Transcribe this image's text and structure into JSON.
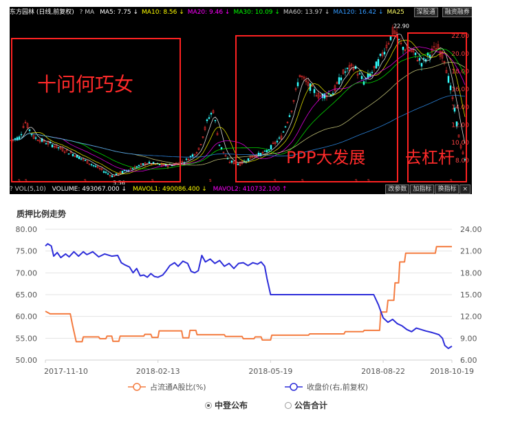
{
  "kline": {
    "title": "东方园林 (日线,前复权)",
    "ma_indicators": [
      {
        "label": "MA5: 7.75 ↓",
        "color": "#ffffff"
      },
      {
        "label": "MA10: 8.56 ↓",
        "color": "#ffff00"
      },
      {
        "label": "MA20: 9.46 ↓",
        "color": "#ff00ff"
      },
      {
        "label": "MA30: 10.09 ↓",
        "color": "#00ff00"
      },
      {
        "label": "MA60: 13.97 ↓",
        "color": "#cccccc"
      },
      {
        "label": "MA120: 16.42 ↓",
        "color": "#3399ff"
      },
      {
        "label": "MA25",
        "color": "#ffff66"
      }
    ],
    "ma_prefix": "? MA",
    "toolbar_buttons": [
      "深股通",
      "融资融券",
      "设置均线"
    ],
    "price_ticks": [
      "22.00",
      "20.00",
      "18.00",
      "16.00",
      "14.00",
      "12.00",
      "10.00",
      "8.00"
    ],
    "peak_label": "22.90",
    "low_label": "5.56",
    "volume_row": {
      "prefix": "? VOL(5,10)",
      "volume": "VOLUME: 493067.000 ↓",
      "mavol1": "MAVOL1: 490086.400 ↓",
      "mavol2": "MAVOL2: 410732.100 ↑"
    },
    "bottom_buttons": [
      "改参数",
      "加指标",
      "换指标",
      "×"
    ],
    "annotations": [
      "十问何巧女",
      "PPP大发展",
      "去杠杆"
    ],
    "colors": {
      "up": "#ff3333",
      "down": "#33ffff",
      "box": "#ff2222"
    }
  },
  "chart_data": {
    "type": "line",
    "title": "质押比例走势",
    "x_tick_labels": [
      "2017-11-10",
      "2018-02-13",
      "2018-05-19",
      "2018-08-22",
      "2018-10-19"
    ],
    "y_left_ticks": [
      "80.00",
      "75.00",
      "70.00",
      "65.00",
      "60.00",
      "55.00",
      "50.00"
    ],
    "y_right_ticks": [
      "24.00",
      "21.00",
      "18.00",
      "15.00",
      "12.00",
      "9.00",
      "6.00"
    ],
    "ylim_left": [
      50,
      80
    ],
    "ylim_right": [
      6,
      24
    ],
    "x_domain": [
      "2017-11-10",
      "2018-10-19"
    ],
    "grid": true,
    "legend_position": "bottom",
    "series": [
      {
        "name": "占流通A股比(%)",
        "axis": "left",
        "color": "#f47b3f",
        "points": [
          [
            "2017-11-10",
            61.2
          ],
          [
            "2017-11-14",
            60.6
          ],
          [
            "2017-12-01",
            60.6
          ],
          [
            "2017-12-03",
            57.9
          ],
          [
            "2017-12-06",
            54.2
          ],
          [
            "2017-12-11",
            54.2
          ],
          [
            "2017-12-12",
            55.3
          ],
          [
            "2017-12-25",
            55.3
          ],
          [
            "2017-12-26",
            54.9
          ],
          [
            "2017-12-31",
            54.9
          ],
          [
            "2018-01-01",
            55.5
          ],
          [
            "2018-01-05",
            55.5
          ],
          [
            "2018-01-06",
            54.3
          ],
          [
            "2018-01-11",
            54.3
          ],
          [
            "2018-01-12",
            55.5
          ],
          [
            "2018-02-01",
            55.5
          ],
          [
            "2018-02-02",
            55.9
          ],
          [
            "2018-02-07",
            55.9
          ],
          [
            "2018-02-08",
            55.2
          ],
          [
            "2018-02-13",
            55.2
          ],
          [
            "2018-02-14",
            56.7
          ],
          [
            "2018-03-05",
            56.7
          ],
          [
            "2018-03-06",
            55.1
          ],
          [
            "2018-03-11",
            55.1
          ],
          [
            "2018-03-12",
            56.8
          ],
          [
            "2018-03-17",
            56.8
          ],
          [
            "2018-03-18",
            55.8
          ],
          [
            "2018-04-10",
            55.8
          ],
          [
            "2018-04-11",
            55.4
          ],
          [
            "2018-04-25",
            55.4
          ],
          [
            "2018-04-26",
            54.9
          ],
          [
            "2018-05-05",
            54.9
          ],
          [
            "2018-05-06",
            55.3
          ],
          [
            "2018-05-11",
            55.3
          ],
          [
            "2018-05-12",
            54.6
          ],
          [
            "2018-05-19",
            54.6
          ],
          [
            "2018-05-20",
            55.7
          ],
          [
            "2018-06-20",
            55.7
          ],
          [
            "2018-06-21",
            56.0
          ],
          [
            "2018-07-20",
            56.0
          ],
          [
            "2018-07-21",
            56.5
          ],
          [
            "2018-08-05",
            56.5
          ],
          [
            "2018-08-06",
            56.8
          ],
          [
            "2018-08-19",
            56.8
          ],
          [
            "2018-08-20",
            61.0
          ],
          [
            "2018-08-25",
            61.0
          ],
          [
            "2018-08-26",
            63.7
          ],
          [
            "2018-08-31",
            63.7
          ],
          [
            "2018-09-01",
            67.7
          ],
          [
            "2018-09-04",
            67.7
          ],
          [
            "2018-09-05",
            72.5
          ],
          [
            "2018-09-09",
            72.5
          ],
          [
            "2018-09-10",
            74.5
          ],
          [
            "2018-10-05",
            74.5
          ],
          [
            "2018-10-06",
            76.0
          ],
          [
            "2018-10-19",
            76.0
          ]
        ]
      },
      {
        "name": "收盘价(右,前复权)",
        "axis": "right",
        "color": "#2b2bd9",
        "points": [
          [
            "2017-11-10",
            21.7
          ],
          [
            "2017-11-12",
            22.0
          ],
          [
            "2017-11-15",
            21.7
          ],
          [
            "2017-11-17",
            20.3
          ],
          [
            "2017-11-20",
            20.8
          ],
          [
            "2017-11-23",
            20.1
          ],
          [
            "2017-11-27",
            20.6
          ],
          [
            "2017-11-30",
            20.2
          ],
          [
            "2017-12-04",
            20.9
          ],
          [
            "2017-12-08",
            20.3
          ],
          [
            "2017-12-12",
            20.9
          ],
          [
            "2017-12-15",
            20.5
          ],
          [
            "2017-12-20",
            20.9
          ],
          [
            "2017-12-25",
            20.2
          ],
          [
            "2017-12-30",
            20.6
          ],
          [
            "2018-01-05",
            20.3
          ],
          [
            "2018-01-10",
            20.4
          ],
          [
            "2018-01-13",
            19.4
          ],
          [
            "2018-01-16",
            19.1
          ],
          [
            "2018-01-20",
            18.8
          ],
          [
            "2018-01-23",
            18.0
          ],
          [
            "2018-01-26",
            18.6
          ],
          [
            "2018-01-29",
            17.6
          ],
          [
            "2018-02-01",
            17.7
          ],
          [
            "2018-02-04",
            17.4
          ],
          [
            "2018-02-07",
            17.9
          ],
          [
            "2018-02-10",
            17.5
          ],
          [
            "2018-02-13",
            17.4
          ],
          [
            "2018-02-17",
            17.7
          ],
          [
            "2018-02-20",
            18.3
          ],
          [
            "2018-02-23",
            19.0
          ],
          [
            "2018-02-27",
            19.4
          ],
          [
            "2018-03-02",
            18.9
          ],
          [
            "2018-03-06",
            19.6
          ],
          [
            "2018-03-10",
            19.3
          ],
          [
            "2018-03-13",
            18.2
          ],
          [
            "2018-03-16",
            18.0
          ],
          [
            "2018-03-19",
            18.3
          ],
          [
            "2018-03-22",
            20.4
          ],
          [
            "2018-03-25",
            19.5
          ],
          [
            "2018-03-29",
            19.9
          ],
          [
            "2018-04-02",
            19.3
          ],
          [
            "2018-04-06",
            19.7
          ],
          [
            "2018-04-10",
            18.9
          ],
          [
            "2018-04-14",
            19.3
          ],
          [
            "2018-04-18",
            18.6
          ],
          [
            "2018-04-22",
            19.3
          ],
          [
            "2018-04-26",
            19.4
          ],
          [
            "2018-04-30",
            19.0
          ],
          [
            "2018-05-04",
            19.4
          ],
          [
            "2018-05-08",
            19.2
          ],
          [
            "2018-05-11",
            19.5
          ],
          [
            "2018-05-14",
            18.9
          ],
          [
            "2018-05-16",
            17.2
          ],
          [
            "2018-05-19",
            15.0
          ],
          [
            "2018-08-14",
            15.0
          ],
          [
            "2018-08-18",
            13.6
          ],
          [
            "2018-08-22",
            11.8
          ],
          [
            "2018-08-26",
            11.2
          ],
          [
            "2018-08-30",
            11.6
          ],
          [
            "2018-09-03",
            11.0
          ],
          [
            "2018-09-07",
            10.7
          ],
          [
            "2018-09-11",
            10.2
          ],
          [
            "2018-09-15",
            9.9
          ],
          [
            "2018-09-19",
            10.4
          ],
          [
            "2018-09-23",
            10.2
          ],
          [
            "2018-09-27",
            10.0
          ],
          [
            "2018-10-02",
            9.8
          ],
          [
            "2018-10-08",
            9.5
          ],
          [
            "2018-10-11",
            9.0
          ],
          [
            "2018-10-13",
            8.0
          ],
          [
            "2018-10-16",
            7.6
          ],
          [
            "2018-10-19",
            7.9
          ]
        ]
      }
    ]
  },
  "radios": [
    {
      "label": "中登公布",
      "selected": true
    },
    {
      "label": "公告合计",
      "selected": false
    }
  ]
}
